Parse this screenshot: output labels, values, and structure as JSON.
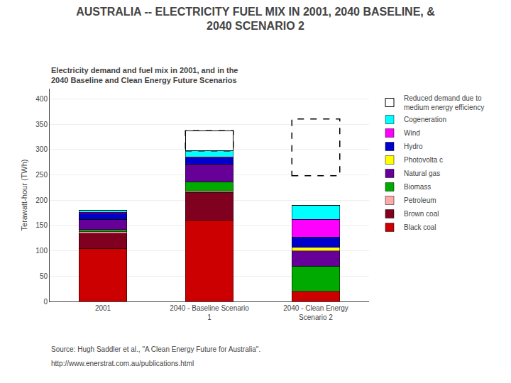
{
  "chart_data": {
    "type": "bar",
    "stacked": true,
    "title": "AUSTRALIA -- ELECTRICITY FUEL MIX IN 2001, 2040 BASELINE, &\n2040 SCENARIO 2",
    "subtitle": "Electricity demand and fuel mix in 2001, and in the\n2040 Baseline and Clean Energy Future Scenarios",
    "ylabel": "Terawatt-hour (TWh)",
    "categories": [
      "2001",
      "2040 - Baseline Scenario\n1",
      "2040 - Clean Energy\nScenario 2"
    ],
    "series": [
      {
        "name": "Black coal",
        "color": "#cc0000",
        "values": [
          105,
          160,
          20
        ]
      },
      {
        "name": "Brown coal",
        "color": "#800020",
        "values": [
          30,
          55,
          0
        ]
      },
      {
        "name": "Petroleum",
        "color": "#ffaaaa",
        "values": [
          3,
          3,
          0
        ]
      },
      {
        "name": "Biomass",
        "color": "#00aa00",
        "values": [
          4,
          18,
          50
        ]
      },
      {
        "name": "Natural gas",
        "color": "#660099",
        "values": [
          20,
          35,
          30
        ]
      },
      {
        "name": "Photovolta c",
        "color": "#ffff00",
        "values": [
          0,
          0,
          7
        ]
      },
      {
        "name": "Hydro",
        "color": "#0000cc",
        "values": [
          12,
          12,
          20
        ]
      },
      {
        "name": "Wind",
        "color": "#ff00ff",
        "values": [
          2,
          2,
          35
        ]
      },
      {
        "name": "Cogeneration",
        "color": "#00ffff",
        "values": [
          4,
          12,
          28
        ]
      },
      {
        "name": "Reduced demand due to\nmedium energy efficiency",
        "color": "#ffffff",
        "values": [
          0,
          40,
          0
        ],
        "line_style": "dashed"
      }
    ],
    "dashed_boxes": [
      {
        "category": "2040 - Clean Energy\nScenario 2",
        "bottom": 248,
        "top": 360,
        "line_style": "dashed"
      }
    ],
    "ylim": [
      0,
      420
    ],
    "yticks": [
      0,
      50,
      100,
      150,
      200,
      250,
      300,
      350,
      400
    ],
    "grid": true,
    "legend": "right",
    "annotations": [
      "Source: Hugh Saddler et al., \"A Clean Energy Future for Australia\".",
      "http://www.enerstrat.com.au/publications.html"
    ]
  }
}
